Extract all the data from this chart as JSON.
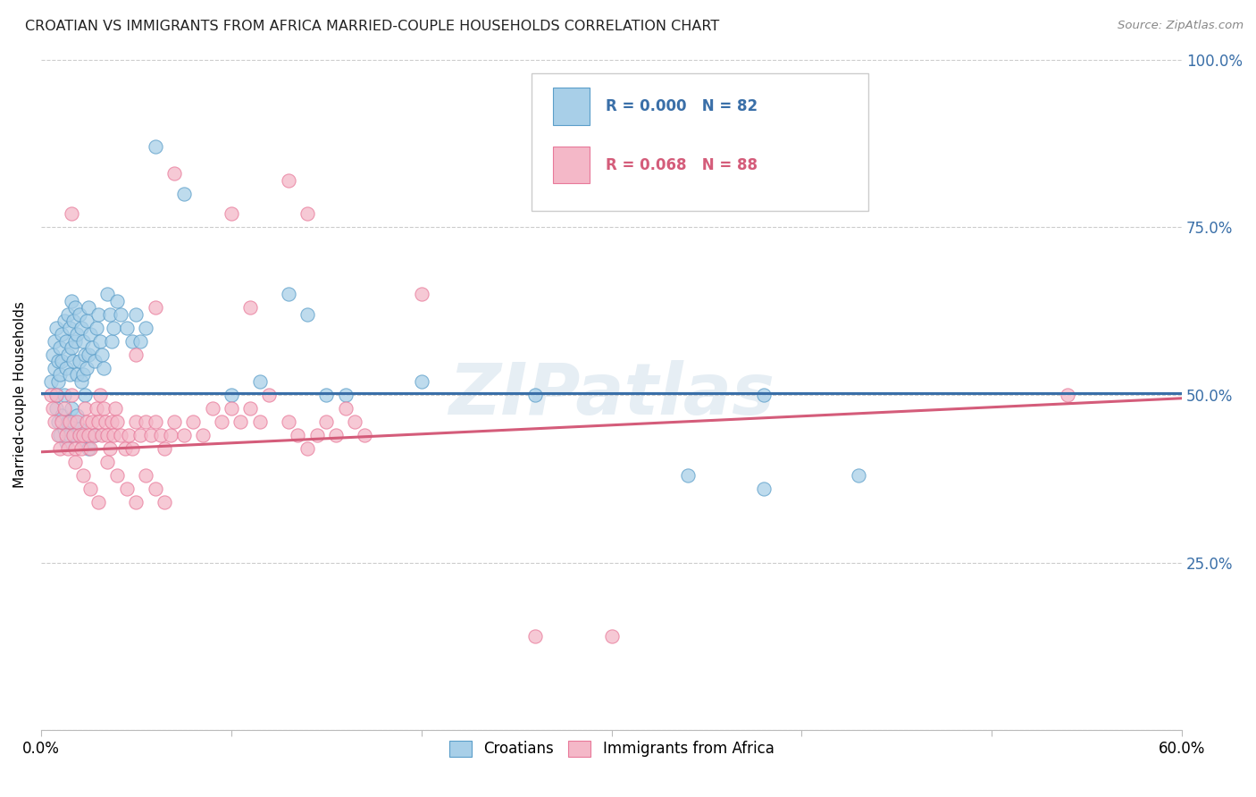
{
  "title": "CROATIAN VS IMMIGRANTS FROM AFRICA MARRIED-COUPLE HOUSEHOLDS CORRELATION CHART",
  "source": "Source: ZipAtlas.com",
  "ylabel": "Married-couple Households",
  "xlim": [
    0.0,
    0.6
  ],
  "ylim": [
    0.0,
    1.0
  ],
  "xtick_vals": [
    0.0,
    0.1,
    0.2,
    0.3,
    0.4,
    0.5,
    0.6
  ],
  "xticklabels": [
    "0.0%",
    "",
    "",
    "",
    "",
    "",
    "60.0%"
  ],
  "ytick_vals": [
    0.0,
    0.25,
    0.5,
    0.75,
    1.0
  ],
  "yticklabels_right": [
    "",
    "25.0%",
    "50.0%",
    "75.0%",
    "100.0%"
  ],
  "blue_color": "#a8cfe8",
  "pink_color": "#f4b8c8",
  "blue_edge_color": "#5b9ec9",
  "pink_edge_color": "#e8799a",
  "blue_line_color": "#3a6fa8",
  "pink_line_color": "#d45c7a",
  "blue_R": 0.0,
  "blue_N": 82,
  "pink_R": 0.068,
  "pink_N": 88,
  "legend_label_blue": "Croatians",
  "legend_label_pink": "Immigrants from Africa",
  "watermark": "ZIPatlas",
  "title_color": "#222222",
  "tick_color_y": "#3a6fa8",
  "blue_line_y": 0.503,
  "pink_line_start_y": 0.415,
  "pink_line_end_y": 0.495,
  "blue_scatter": [
    [
      0.005,
      0.52
    ],
    [
      0.006,
      0.56
    ],
    [
      0.007,
      0.58
    ],
    [
      0.007,
      0.54
    ],
    [
      0.008,
      0.6
    ],
    [
      0.008,
      0.5
    ],
    [
      0.009,
      0.55
    ],
    [
      0.009,
      0.52
    ],
    [
      0.01,
      0.57
    ],
    [
      0.01,
      0.53
    ],
    [
      0.011,
      0.59
    ],
    [
      0.011,
      0.55
    ],
    [
      0.012,
      0.61
    ],
    [
      0.012,
      0.5
    ],
    [
      0.013,
      0.58
    ],
    [
      0.013,
      0.54
    ],
    [
      0.014,
      0.62
    ],
    [
      0.014,
      0.56
    ],
    [
      0.015,
      0.6
    ],
    [
      0.015,
      0.53
    ],
    [
      0.016,
      0.64
    ],
    [
      0.016,
      0.57
    ],
    [
      0.017,
      0.61
    ],
    [
      0.017,
      0.55
    ],
    [
      0.018,
      0.63
    ],
    [
      0.018,
      0.58
    ],
    [
      0.019,
      0.59
    ],
    [
      0.019,
      0.53
    ],
    [
      0.02,
      0.62
    ],
    [
      0.02,
      0.55
    ],
    [
      0.021,
      0.6
    ],
    [
      0.021,
      0.52
    ],
    [
      0.022,
      0.58
    ],
    [
      0.022,
      0.53
    ],
    [
      0.023,
      0.56
    ],
    [
      0.023,
      0.5
    ],
    [
      0.024,
      0.61
    ],
    [
      0.024,
      0.54
    ],
    [
      0.025,
      0.63
    ],
    [
      0.025,
      0.56
    ],
    [
      0.026,
      0.59
    ],
    [
      0.027,
      0.57
    ],
    [
      0.028,
      0.55
    ],
    [
      0.029,
      0.6
    ],
    [
      0.03,
      0.62
    ],
    [
      0.031,
      0.58
    ],
    [
      0.032,
      0.56
    ],
    [
      0.033,
      0.54
    ],
    [
      0.035,
      0.65
    ],
    [
      0.036,
      0.62
    ],
    [
      0.037,
      0.58
    ],
    [
      0.038,
      0.6
    ],
    [
      0.04,
      0.64
    ],
    [
      0.042,
      0.62
    ],
    [
      0.045,
      0.6
    ],
    [
      0.048,
      0.58
    ],
    [
      0.05,
      0.62
    ],
    [
      0.052,
      0.58
    ],
    [
      0.055,
      0.6
    ],
    [
      0.008,
      0.48
    ],
    [
      0.009,
      0.46
    ],
    [
      0.01,
      0.44
    ],
    [
      0.011,
      0.47
    ],
    [
      0.012,
      0.45
    ],
    [
      0.013,
      0.43
    ],
    [
      0.014,
      0.46
    ],
    [
      0.015,
      0.44
    ],
    [
      0.016,
      0.48
    ],
    [
      0.017,
      0.46
    ],
    [
      0.018,
      0.44
    ],
    [
      0.019,
      0.47
    ],
    [
      0.02,
      0.45
    ],
    [
      0.022,
      0.43
    ],
    [
      0.025,
      0.42
    ],
    [
      0.028,
      0.44
    ],
    [
      0.06,
      0.87
    ],
    [
      0.075,
      0.8
    ],
    [
      0.1,
      0.5
    ],
    [
      0.115,
      0.52
    ],
    [
      0.13,
      0.65
    ],
    [
      0.14,
      0.62
    ],
    [
      0.15,
      0.5
    ],
    [
      0.16,
      0.5
    ],
    [
      0.2,
      0.52
    ],
    [
      0.26,
      0.5
    ],
    [
      0.34,
      0.38
    ],
    [
      0.38,
      0.5
    ],
    [
      0.38,
      0.36
    ],
    [
      0.43,
      0.38
    ]
  ],
  "pink_scatter": [
    [
      0.005,
      0.5
    ],
    [
      0.006,
      0.48
    ],
    [
      0.007,
      0.46
    ],
    [
      0.008,
      0.5
    ],
    [
      0.009,
      0.44
    ],
    [
      0.01,
      0.42
    ],
    [
      0.011,
      0.46
    ],
    [
      0.012,
      0.48
    ],
    [
      0.013,
      0.44
    ],
    [
      0.014,
      0.42
    ],
    [
      0.015,
      0.46
    ],
    [
      0.016,
      0.5
    ],
    [
      0.017,
      0.44
    ],
    [
      0.018,
      0.42
    ],
    [
      0.019,
      0.46
    ],
    [
      0.02,
      0.44
    ],
    [
      0.021,
      0.42
    ],
    [
      0.022,
      0.44
    ],
    [
      0.023,
      0.48
    ],
    [
      0.024,
      0.46
    ],
    [
      0.025,
      0.44
    ],
    [
      0.026,
      0.42
    ],
    [
      0.027,
      0.46
    ],
    [
      0.028,
      0.44
    ],
    [
      0.029,
      0.48
    ],
    [
      0.03,
      0.46
    ],
    [
      0.031,
      0.5
    ],
    [
      0.032,
      0.44
    ],
    [
      0.033,
      0.48
    ],
    [
      0.034,
      0.46
    ],
    [
      0.035,
      0.44
    ],
    [
      0.036,
      0.42
    ],
    [
      0.037,
      0.46
    ],
    [
      0.038,
      0.44
    ],
    [
      0.039,
      0.48
    ],
    [
      0.04,
      0.46
    ],
    [
      0.042,
      0.44
    ],
    [
      0.044,
      0.42
    ],
    [
      0.046,
      0.44
    ],
    [
      0.048,
      0.42
    ],
    [
      0.05,
      0.46
    ],
    [
      0.052,
      0.44
    ],
    [
      0.055,
      0.46
    ],
    [
      0.058,
      0.44
    ],
    [
      0.06,
      0.46
    ],
    [
      0.063,
      0.44
    ],
    [
      0.065,
      0.42
    ],
    [
      0.068,
      0.44
    ],
    [
      0.07,
      0.46
    ],
    [
      0.075,
      0.44
    ],
    [
      0.08,
      0.46
    ],
    [
      0.085,
      0.44
    ],
    [
      0.09,
      0.48
    ],
    [
      0.095,
      0.46
    ],
    [
      0.1,
      0.48
    ],
    [
      0.105,
      0.46
    ],
    [
      0.11,
      0.48
    ],
    [
      0.115,
      0.46
    ],
    [
      0.12,
      0.5
    ],
    [
      0.13,
      0.46
    ],
    [
      0.135,
      0.44
    ],
    [
      0.14,
      0.42
    ],
    [
      0.145,
      0.44
    ],
    [
      0.15,
      0.46
    ],
    [
      0.155,
      0.44
    ],
    [
      0.16,
      0.48
    ],
    [
      0.165,
      0.46
    ],
    [
      0.17,
      0.44
    ],
    [
      0.018,
      0.4
    ],
    [
      0.022,
      0.38
    ],
    [
      0.026,
      0.36
    ],
    [
      0.03,
      0.34
    ],
    [
      0.035,
      0.4
    ],
    [
      0.04,
      0.38
    ],
    [
      0.045,
      0.36
    ],
    [
      0.05,
      0.34
    ],
    [
      0.055,
      0.38
    ],
    [
      0.06,
      0.36
    ],
    [
      0.065,
      0.34
    ],
    [
      0.016,
      0.77
    ],
    [
      0.07,
      0.83
    ],
    [
      0.1,
      0.77
    ],
    [
      0.14,
      0.77
    ],
    [
      0.13,
      0.82
    ],
    [
      0.2,
      0.65
    ],
    [
      0.26,
      0.14
    ],
    [
      0.3,
      0.14
    ],
    [
      0.54,
      0.5
    ],
    [
      0.05,
      0.56
    ],
    [
      0.06,
      0.63
    ],
    [
      0.11,
      0.63
    ]
  ]
}
